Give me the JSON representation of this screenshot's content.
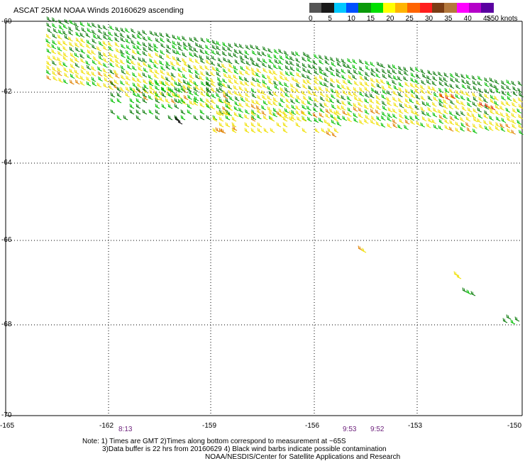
{
  "title": "ASCAT 25KM NOAA Winds 20160629 ascending",
  "legend": {
    "units": ">50 knots",
    "labels": [
      "0",
      "5",
      "10",
      "15",
      "20",
      "25",
      "30",
      "35",
      "40",
      "45"
    ],
    "colors": [
      "#555555",
      "#1a1a1a",
      "#00c8ff",
      "#0050ff",
      "#0a9a0a",
      "#00e000",
      "#ffff00",
      "#ffb400",
      "#ff6400",
      "#ff1e1e",
      "#7a3c14",
      "#b4783c",
      "#ff00ff",
      "#b400c8",
      "#5a00a0"
    ]
  },
  "axes": {
    "lat_labels": [
      "-60",
      "-62",
      "-64",
      "-66",
      "-68",
      "-70"
    ],
    "lon_labels": [
      "-165",
      "-162",
      "-159",
      "-156",
      "-153",
      "-150"
    ]
  },
  "times": [
    "8:13",
    "9:53",
    "9:52"
  ],
  "notes": {
    "line1": "Note: 1) Times are GMT 2)Times along bottom correspond to measurement at ~65S",
    "line2": "3)Data buffer is 22 hrs from 20160629 4) Black wind barbs indicate possible contamination",
    "line3": "NOAA/NESDIS/Center for Satellite Applications and Research"
  },
  "barb_colors": {
    "green_dark": "#0a7a0a",
    "green": "#00c000",
    "yellow": "#f0e000",
    "orange": "#e08000",
    "red": "#e03000"
  }
}
